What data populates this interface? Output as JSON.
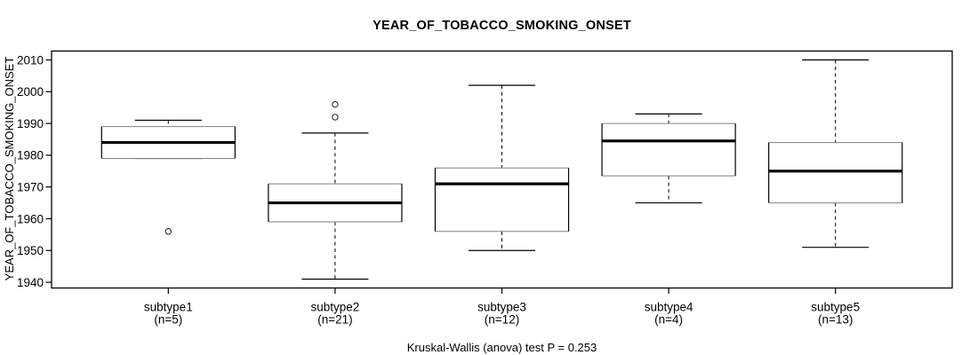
{
  "chart_data": {
    "type": "boxplot",
    "title": "YEAR_OF_TOBACCO_SMOKING_ONSET",
    "ylabel": "YEAR_OF_TOBACCO_SMOKING_ONSET",
    "xlabel": "",
    "yticks": [
      1940,
      1950,
      1960,
      1970,
      1980,
      1990,
      2000,
      2010
    ],
    "ylim": [
      1938.2,
      2012.8
    ],
    "grid": false,
    "annotation": "Kruskal-Wallis (anova) test P = 0.253",
    "groups": [
      {
        "label": "subtype1",
        "n": 5,
        "n_label": "(n=5)",
        "whisker_low": 1979,
        "q1": 1979,
        "median": 1984,
        "q3": 1989,
        "whisker_high": 1991,
        "outliers": [
          1956
        ]
      },
      {
        "label": "subtype2",
        "n": 21,
        "n_label": "(n=21)",
        "whisker_low": 1941,
        "q1": 1959,
        "median": 1965,
        "q3": 1971,
        "whisker_high": 1987,
        "outliers": [
          1992,
          1996
        ]
      },
      {
        "label": "subtype3",
        "n": 12,
        "n_label": "(n=12)",
        "whisker_low": 1950,
        "q1": 1956,
        "median": 1971,
        "q3": 1976,
        "whisker_high": 2002,
        "outliers": []
      },
      {
        "label": "subtype4",
        "n": 4,
        "n_label": "(n=4)",
        "whisker_low": 1965,
        "q1": 1973.5,
        "median": 1984.5,
        "q3": 1990,
        "whisker_high": 1993,
        "outliers": []
      },
      {
        "label": "subtype5",
        "n": 13,
        "n_label": "(n=13)",
        "whisker_low": 1951,
        "q1": 1965,
        "median": 1975,
        "q3": 1984,
        "whisker_high": 2010,
        "outliers": []
      }
    ],
    "colors": {
      "line": "#000000",
      "box_border_horizontal": "#808080",
      "box_border_vertical": "#000000",
      "box_fill": "#ffffff",
      "outlier_stroke": "#2b2b2b",
      "background": "#ffffff"
    }
  }
}
